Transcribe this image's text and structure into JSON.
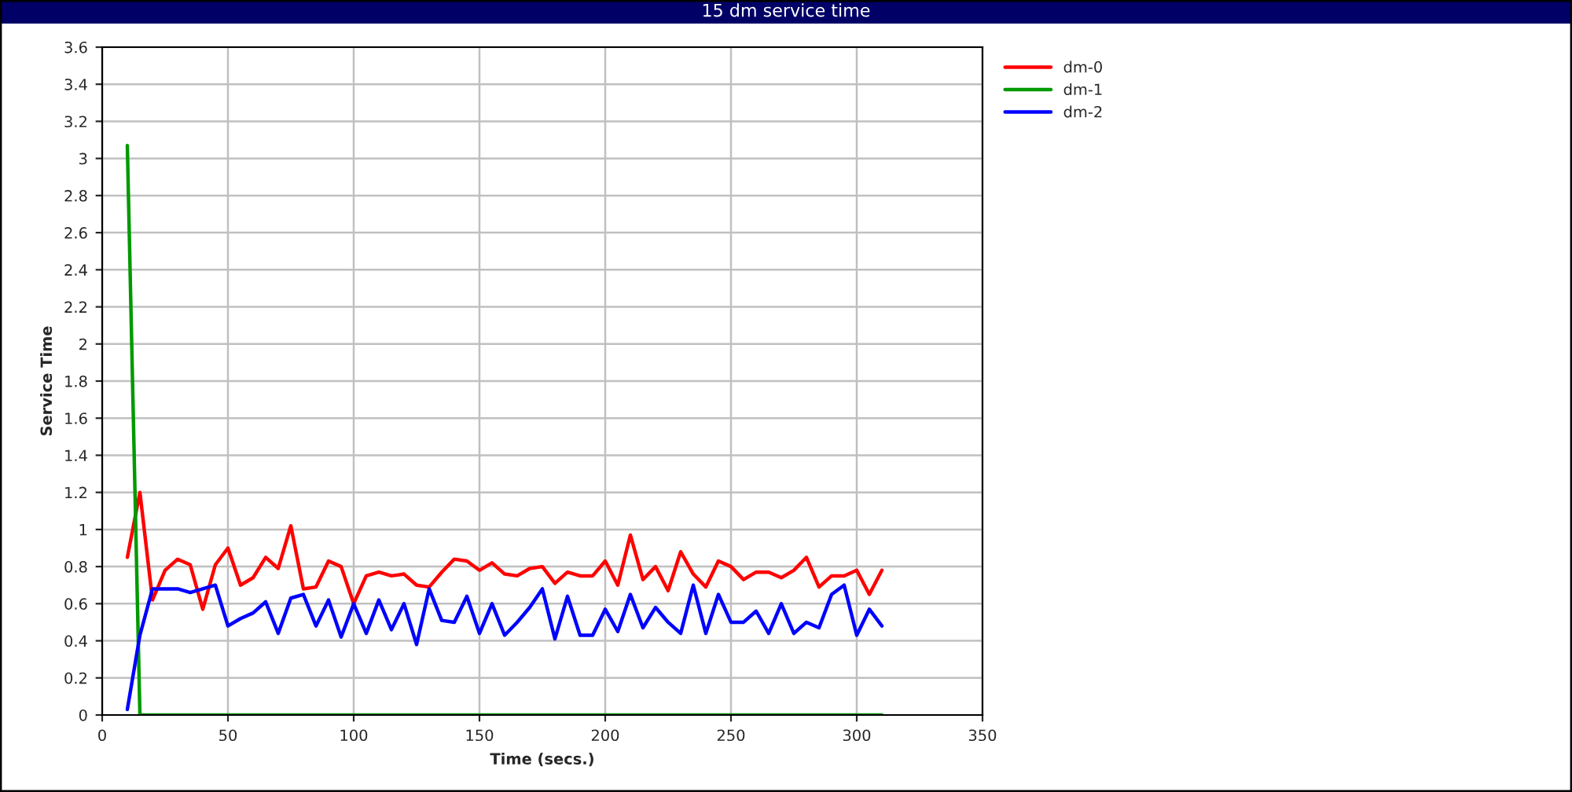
{
  "chart_data": {
    "type": "line",
    "title": "15 dm service time",
    "xlabel": "Time (secs.)",
    "ylabel": "Service Time",
    "x": [
      10,
      15,
      20,
      25,
      30,
      35,
      40,
      45,
      50,
      55,
      60,
      65,
      70,
      75,
      80,
      85,
      90,
      95,
      100,
      105,
      110,
      115,
      120,
      125,
      130,
      135,
      140,
      145,
      150,
      155,
      160,
      165,
      170,
      175,
      180,
      185,
      190,
      195,
      200,
      205,
      210,
      215,
      220,
      225,
      230,
      235,
      240,
      245,
      250,
      255,
      260,
      265,
      270,
      275,
      280,
      285,
      290,
      295,
      300,
      305,
      310
    ],
    "series": [
      {
        "name": "dm-0",
        "color": "#ff0000",
        "values": [
          0.85,
          1.2,
          0.62,
          0.78,
          0.84,
          0.81,
          0.57,
          0.81,
          0.9,
          0.7,
          0.74,
          0.85,
          0.79,
          1.02,
          0.68,
          0.69,
          0.83,
          0.8,
          0.6,
          0.75,
          0.77,
          0.75,
          0.76,
          0.7,
          0.69,
          0.77,
          0.84,
          0.83,
          0.78,
          0.82,
          0.76,
          0.75,
          0.79,
          0.8,
          0.71,
          0.77,
          0.75,
          0.75,
          0.83,
          0.7,
          0.97,
          0.73,
          0.8,
          0.67,
          0.88,
          0.76,
          0.69,
          0.83,
          0.8,
          0.73,
          0.77,
          0.77,
          0.74,
          0.78,
          0.85,
          0.69,
          0.75,
          0.75,
          0.78,
          0.65,
          0.78
        ]
      },
      {
        "name": "dm-1",
        "color": "#009900",
        "values": [
          3.07,
          0,
          0,
          0,
          0,
          0,
          0,
          0,
          0,
          0,
          0,
          0,
          0,
          0,
          0,
          0,
          0,
          0,
          0,
          0,
          0,
          0,
          0,
          0,
          0,
          0,
          0,
          0,
          0,
          0,
          0,
          0,
          0,
          0,
          0,
          0,
          0,
          0,
          0,
          0,
          0,
          0,
          0,
          0,
          0,
          0,
          0,
          0,
          0,
          0,
          0,
          0,
          0,
          0,
          0,
          0,
          0,
          0,
          0,
          0,
          0
        ]
      },
      {
        "name": "dm-2",
        "color": "#0000ff",
        "values": [
          0.03,
          0.43,
          0.68,
          0.68,
          0.68,
          0.66,
          0.68,
          0.7,
          0.48,
          0.52,
          0.55,
          0.61,
          0.44,
          0.63,
          0.65,
          0.48,
          0.62,
          0.42,
          0.6,
          0.44,
          0.62,
          0.46,
          0.6,
          0.38,
          0.68,
          0.51,
          0.5,
          0.64,
          0.44,
          0.6,
          0.43,
          0.5,
          0.58,
          0.68,
          0.41,
          0.64,
          0.43,
          0.43,
          0.57,
          0.45,
          0.65,
          0.47,
          0.58,
          0.5,
          0.44,
          0.7,
          0.44,
          0.65,
          0.5,
          0.5,
          0.56,
          0.44,
          0.6,
          0.44,
          0.5,
          0.47,
          0.65,
          0.7,
          0.43,
          0.57,
          0.48
        ]
      }
    ],
    "xlim": [
      0,
      350
    ],
    "xticks": [
      0,
      50,
      100,
      150,
      200,
      250,
      300,
      350
    ],
    "ylim": [
      0,
      3.6
    ],
    "yticks": [
      0,
      0.2,
      0.4,
      0.6,
      0.8,
      1,
      1.2,
      1.4,
      1.6,
      1.8,
      2,
      2.2,
      2.4,
      2.6,
      2.8,
      3,
      3.2,
      3.4,
      3.6
    ],
    "grid": true,
    "legend": "right",
    "marker": "none",
    "line_style": "solid"
  }
}
